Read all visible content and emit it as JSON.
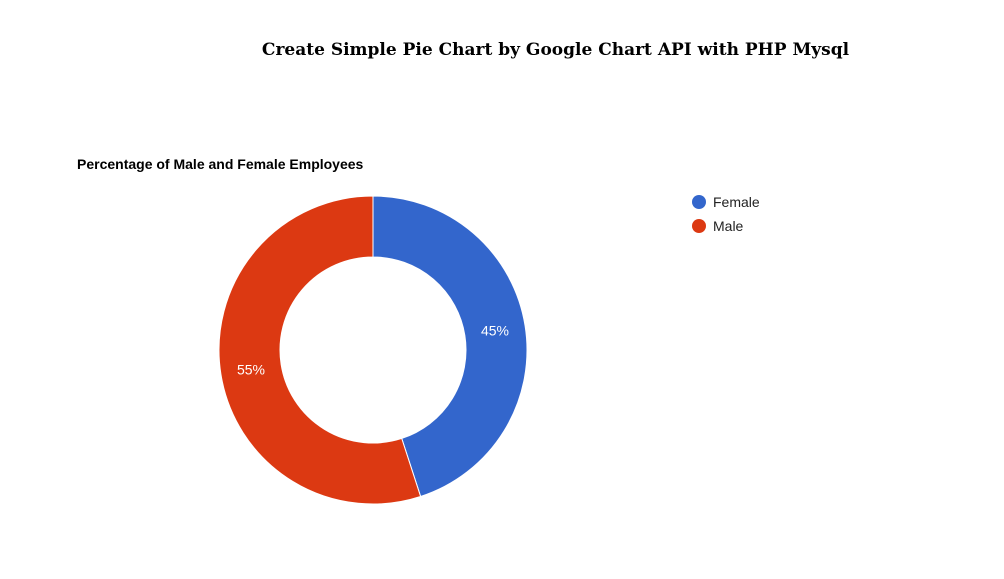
{
  "page": {
    "heading": "Create Simple Pie Chart by Google Chart API with PHP Mysql"
  },
  "chart_data": {
    "type": "pie",
    "variant": "donut",
    "title": "Percentage of Male and Female Employees",
    "categories": [
      "Female",
      "Male"
    ],
    "values": [
      45,
      55
    ],
    "slice_labels": [
      "45%",
      "55%"
    ],
    "colors": [
      "#3366cc",
      "#dc3912"
    ],
    "legend": {
      "position": "right",
      "items": [
        "Female",
        "Male"
      ]
    }
  }
}
